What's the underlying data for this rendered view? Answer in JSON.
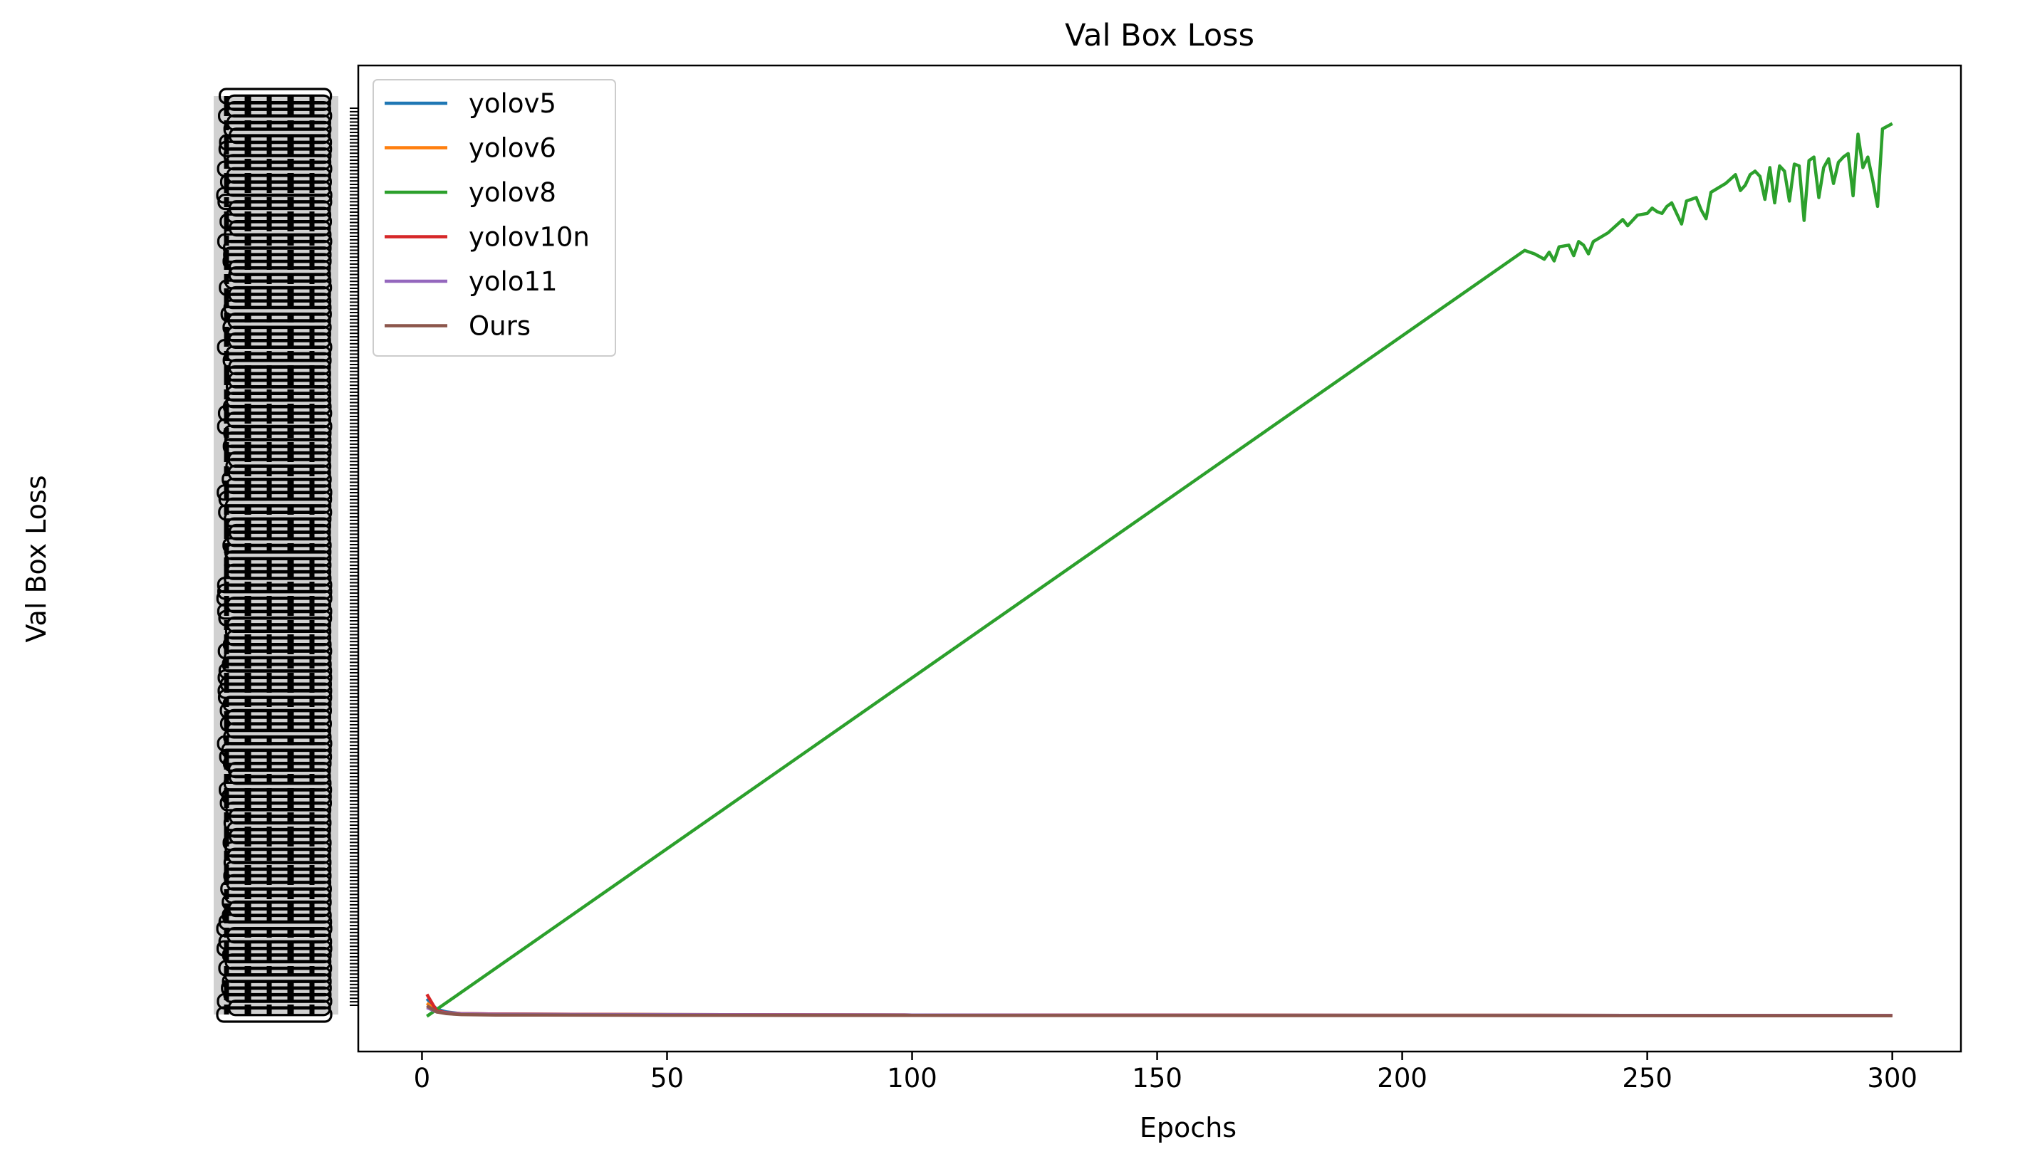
{
  "chart_data": {
    "type": "line",
    "title": "Val Box Loss",
    "xlabel": "Epochs",
    "ylabel": "Val Box Loss",
    "xlim": [
      -13,
      314
    ],
    "xticks": [
      0,
      50,
      100,
      150,
      200,
      250,
      300
    ],
    "ylim": [
      -4,
      108
    ],
    "y_scale_note": "categorical (string) y axis; values given as category index",
    "grid": false,
    "legend": "top-left",
    "series": [
      {
        "name": "yolov5",
        "color": "#1f77b4",
        "points": [
          [
            1,
            2.0
          ],
          [
            3,
            0.8
          ],
          [
            5,
            0.5
          ],
          [
            8,
            0.3
          ],
          [
            15,
            0.25
          ],
          [
            50,
            0.2
          ],
          [
            100,
            0.15
          ],
          [
            200,
            0.12
          ],
          [
            300,
            0.1
          ]
        ]
      },
      {
        "name": "yolov6",
        "color": "#ff7f0e",
        "points": [
          [
            1,
            1.5
          ],
          [
            3,
            0.6
          ],
          [
            5,
            0.4
          ],
          [
            8,
            0.3
          ],
          [
            15,
            0.25
          ],
          [
            50,
            0.2
          ],
          [
            100,
            0.15
          ],
          [
            200,
            0.12
          ],
          [
            300,
            0.1
          ]
        ]
      },
      {
        "name": "yolov8",
        "color": "#2ca02c",
        "points": [
          [
            1,
            0
          ],
          [
            225,
            87
          ],
          [
            227,
            86.6
          ],
          [
            229,
            86
          ],
          [
            230,
            86.8
          ],
          [
            231,
            85.8
          ],
          [
            232,
            87.4
          ],
          [
            234,
            87.6
          ],
          [
            235,
            86.4
          ],
          [
            236,
            88
          ],
          [
            237,
            87.6
          ],
          [
            238,
            86.6
          ],
          [
            239,
            88
          ],
          [
            242,
            89
          ],
          [
            245,
            90.5
          ],
          [
            246,
            89.8
          ],
          [
            248,
            91
          ],
          [
            250,
            91.2
          ],
          [
            251,
            91.8
          ],
          [
            252,
            91.4
          ],
          [
            253,
            91.2
          ],
          [
            254,
            92
          ],
          [
            255,
            92.4
          ],
          [
            256,
            91.2
          ],
          [
            257,
            90
          ],
          [
            258,
            92.6
          ],
          [
            260,
            93
          ],
          [
            261,
            91.6
          ],
          [
            262,
            90.6
          ],
          [
            263,
            93.6
          ],
          [
            266,
            94.6
          ],
          [
            268,
            95.6
          ],
          [
            269,
            93.8
          ],
          [
            270,
            94.4
          ],
          [
            271,
            95.6
          ],
          [
            272,
            96
          ],
          [
            273,
            95.4
          ],
          [
            274,
            92.8
          ],
          [
            275,
            96.4
          ],
          [
            276,
            92.4
          ],
          [
            277,
            96.6
          ],
          [
            278,
            96
          ],
          [
            279,
            92.6
          ],
          [
            280,
            96.8
          ],
          [
            281,
            96.6
          ],
          [
            282,
            90.4
          ],
          [
            283,
            97.2
          ],
          [
            284,
            97.6
          ],
          [
            285,
            93
          ],
          [
            286,
            96.4
          ],
          [
            287,
            97.4
          ],
          [
            288,
            94.6
          ],
          [
            289,
            97
          ],
          [
            290,
            97.6
          ],
          [
            291,
            98
          ],
          [
            292,
            93.2
          ],
          [
            293,
            100.2
          ],
          [
            294,
            96.4
          ],
          [
            295,
            97.6
          ],
          [
            296,
            95
          ],
          [
            297,
            92
          ],
          [
            298,
            100.8
          ],
          [
            300,
            101.4
          ]
        ]
      },
      {
        "name": "yolov10n",
        "color": "#d62728",
        "points": [
          [
            1,
            2.5
          ],
          [
            3,
            0.6
          ],
          [
            5,
            0.4
          ],
          [
            8,
            0.3
          ],
          [
            15,
            0.25
          ],
          [
            50,
            0.2
          ],
          [
            100,
            0.15
          ],
          [
            200,
            0.12
          ],
          [
            300,
            0.1
          ]
        ]
      },
      {
        "name": "yolo11",
        "color": "#9467bd",
        "points": [
          [
            1,
            1.0
          ],
          [
            3,
            0.5
          ],
          [
            5,
            0.35
          ],
          [
            8,
            0.28
          ],
          [
            15,
            0.22
          ],
          [
            50,
            0.18
          ],
          [
            100,
            0.14
          ],
          [
            200,
            0.11
          ],
          [
            300,
            0.09
          ]
        ]
      },
      {
        "name": "Ours",
        "color": "#8c564b",
        "points": [
          [
            1,
            1.2
          ],
          [
            3,
            0.5
          ],
          [
            5,
            0.3
          ],
          [
            8,
            0.2
          ],
          [
            15,
            0.15
          ],
          [
            50,
            0.12
          ],
          [
            100,
            0.1
          ],
          [
            200,
            0.08
          ],
          [
            300,
            0.06
          ]
        ]
      }
    ]
  }
}
